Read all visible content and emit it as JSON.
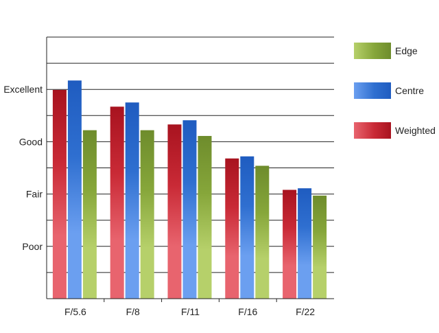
{
  "chart_data": {
    "type": "bar",
    "title": "",
    "xlabel": "",
    "ylabel": "",
    "categories": [
      "F/5.6",
      "F/8",
      "F/11",
      "F/16",
      "F/22"
    ],
    "y_ticks": [
      {
        "value": 1,
        "label": "Poor"
      },
      {
        "value": 2,
        "label": "Fair"
      },
      {
        "value": 3,
        "label": "Good"
      },
      {
        "value": 4,
        "label": "Excellent"
      }
    ],
    "ylim": [
      0,
      5
    ],
    "grid": true,
    "legend_position": "right",
    "series": [
      {
        "name": "Weighted",
        "values": [
          3.99,
          3.67,
          3.33,
          2.68,
          2.08
        ],
        "color_top": "#a8131f",
        "color_mid": "#c92a36",
        "color_bottom": "#e8646e"
      },
      {
        "name": "Centre",
        "values": [
          4.17,
          3.75,
          3.41,
          2.72,
          2.11
        ],
        "color_top": "#1f5cc0",
        "color_mid": "#2f6fd0",
        "color_bottom": "#6b9ff0"
      },
      {
        "name": "Edge",
        "values": [
          3.22,
          3.22,
          3.11,
          2.54,
          1.97
        ],
        "color_top": "#6e8c2c",
        "color_mid": "#86a63a",
        "color_bottom": "#b6d06a"
      }
    ],
    "legend_order": [
      "Edge",
      "Centre",
      "Weighted"
    ]
  }
}
